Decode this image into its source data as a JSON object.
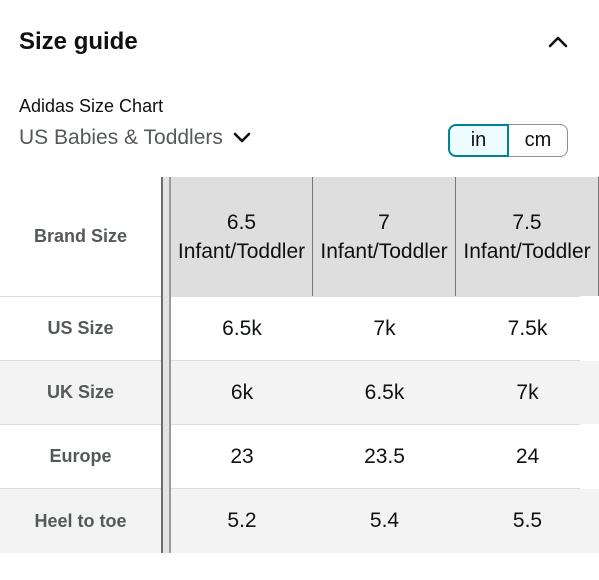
{
  "header": {
    "title": "Size guide"
  },
  "chart": {
    "brand": "Adidas Size Chart",
    "region": "US Babies & Toddlers"
  },
  "units": {
    "in": "in",
    "cm": "cm",
    "selected": "in"
  },
  "table": {
    "header_label": "Brand Size",
    "columns": [
      "6.5 Infant/Toddler",
      "7 Infant/Toddler",
      "7.5 Infant/Toddler"
    ],
    "rows": [
      {
        "label": "US Size",
        "values": [
          "6.5k",
          "7k",
          "7.5k"
        ]
      },
      {
        "label": "UK Size",
        "values": [
          "6k",
          "6.5k",
          "7k"
        ]
      },
      {
        "label": "Europe",
        "values": [
          "23",
          "23.5",
          "24"
        ]
      },
      {
        "label": "Heel to toe",
        "values": [
          "5.2",
          "5.4",
          "5.5"
        ]
      }
    ]
  },
  "colors": {
    "accent": "#008296",
    "accent_bg": "#edfdff",
    "header_bg": "#dedede"
  }
}
